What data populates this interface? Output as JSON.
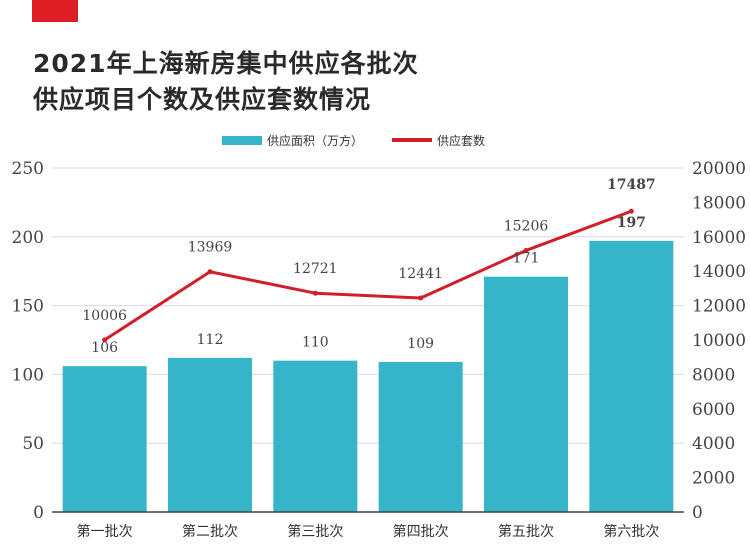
{
  "title_lines": [
    "2021年上海新房集中供应各批次",
    "供应项目个数及供应套数情况"
  ],
  "colors": {
    "accent": "#dc1e25",
    "bar": "#36b4c8",
    "line": "#d21e28",
    "axis": "#444444",
    "grid": "#d9d9d9"
  },
  "chart_data": {
    "type": "bar",
    "categories": [
      "第一批次",
      "第二批次",
      "第三批次",
      "第四批次",
      "第五批次",
      "第六批次"
    ],
    "series": [
      {
        "name": "供应面积（万方）",
        "type": "bar",
        "axis": "left",
        "values": [
          106,
          112,
          110,
          109,
          171,
          197
        ]
      },
      {
        "name": "供应套数",
        "type": "line",
        "axis": "right",
        "values": [
          10006,
          13969,
          12721,
          12441,
          15206,
          17487
        ]
      }
    ],
    "y_left": {
      "lim": [
        0,
        250
      ],
      "ticks": [
        0,
        50,
        100,
        150,
        200,
        250
      ]
    },
    "y_right": {
      "lim": [
        0,
        20000
      ],
      "ticks": [
        0,
        2000,
        4000,
        6000,
        8000,
        10000,
        12000,
        14000,
        16000,
        18000,
        20000
      ]
    },
    "grid": true,
    "legend_position": "top-center",
    "highlight_last_point": true
  }
}
